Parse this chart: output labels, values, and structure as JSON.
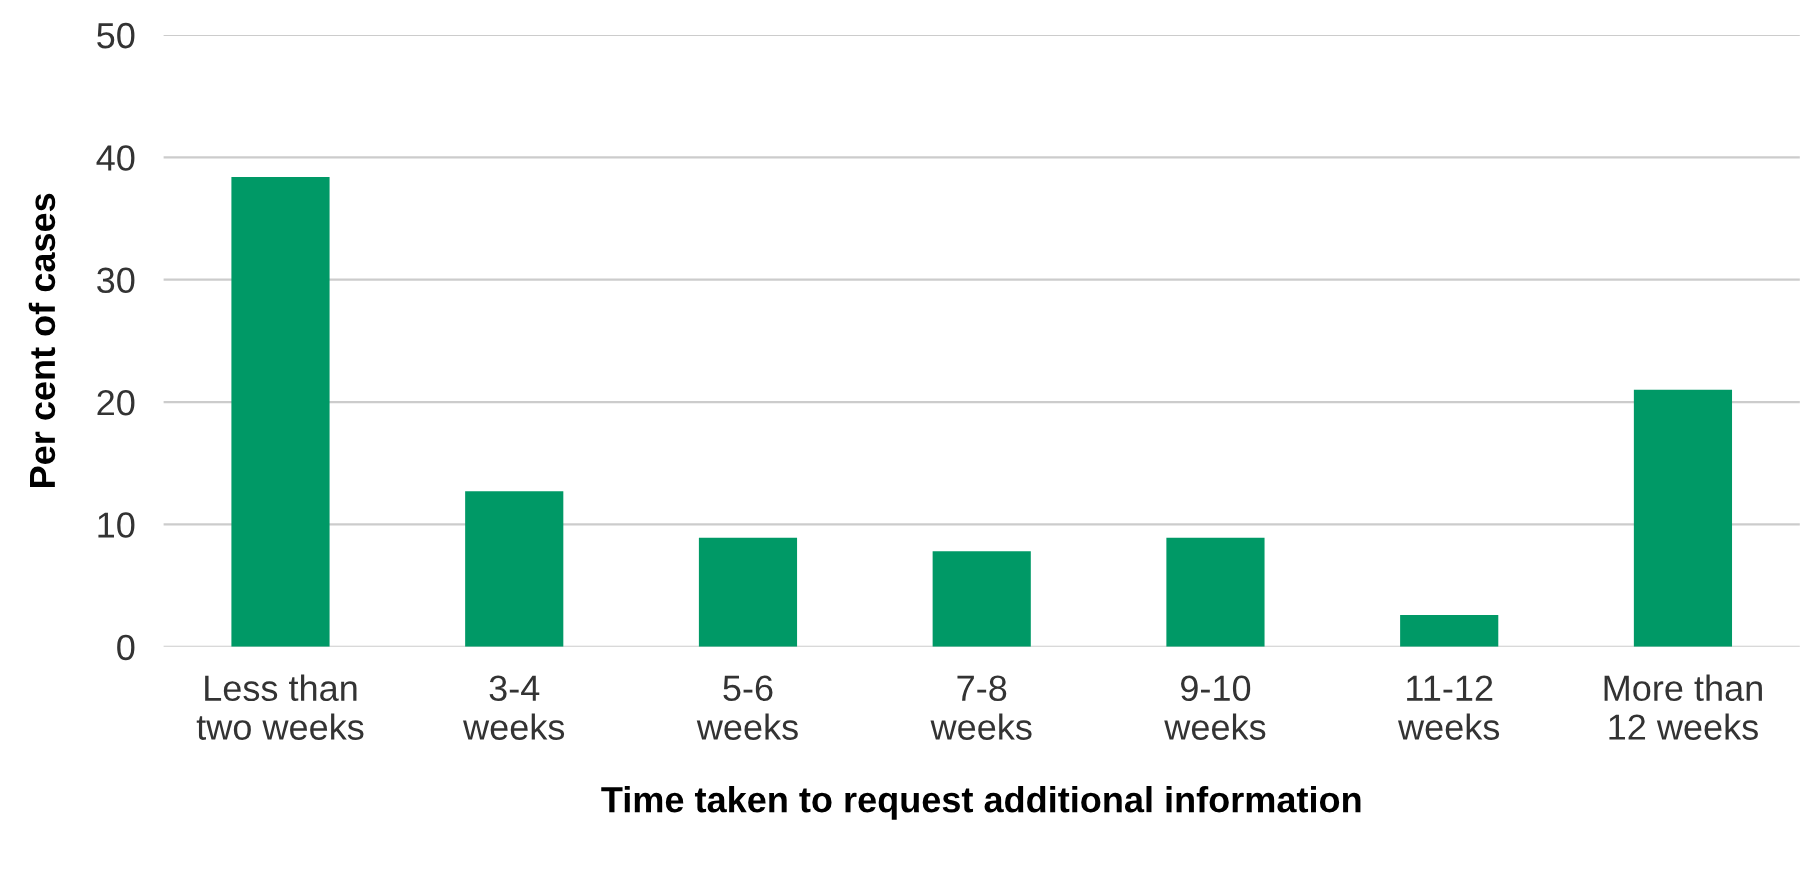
{
  "chart_data": {
    "type": "bar",
    "categories": [
      "Less than\ntwo weeks",
      "3-4\nweeks",
      "5-6\nweeks",
      "7-8\nweeks",
      "9-10\nweeks",
      "11-12\nweeks",
      "More than\n12 weeks"
    ],
    "values": [
      38.4,
      12.7,
      8.9,
      7.8,
      8.9,
      2.6,
      21.0
    ],
    "color": "#009966",
    "xlabel": "Time taken to request additional information",
    "ylabel": "Per cent of cases",
    "ylim": [
      0,
      50
    ],
    "yticks": [
      0,
      10,
      20,
      30,
      40,
      50
    ],
    "grid": "y"
  }
}
